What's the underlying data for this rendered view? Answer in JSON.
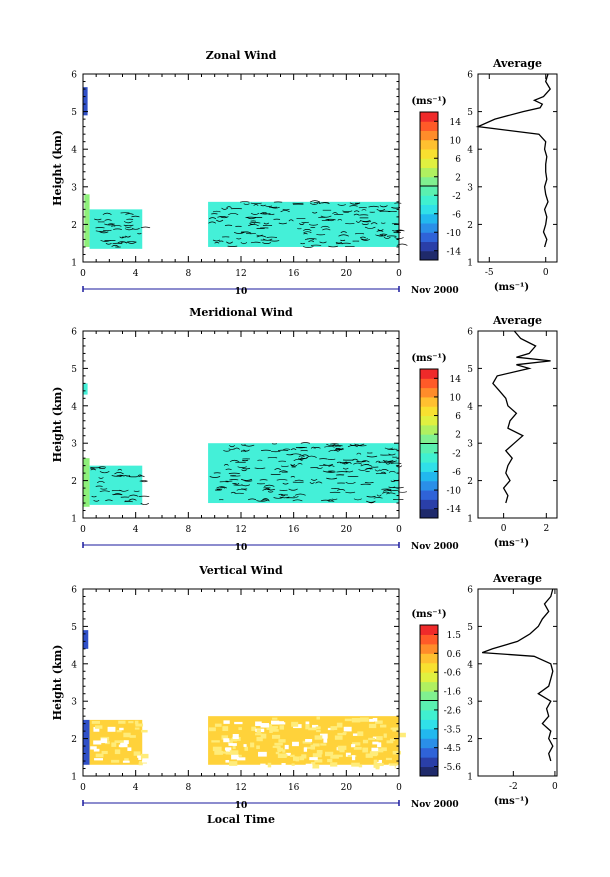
{
  "chart_data": [
    {
      "type": "heatmap",
      "title": "Zonal Wind",
      "ylabel": "Height (km)",
      "xlabel": "",
      "colorbar_label": "(ms⁻¹)",
      "colorbar_ticks": [
        "14",
        "10",
        "6",
        "2",
        "-2",
        "-6",
        "-10",
        "-14"
      ],
      "x_ticks": [
        "0",
        "4",
        "8",
        "12",
        "16",
        "20",
        "0"
      ],
      "y_ticks": [
        "1",
        "2",
        "3",
        "4",
        "5",
        "6"
      ],
      "xlim": [
        0,
        24
      ],
      "ylim": [
        1,
        6
      ],
      "date_label": "10",
      "month_label": "Nov 2000",
      "tone": "cyan",
      "regions": [
        {
          "x0": 0.1,
          "x1": 0.5,
          "y0": 1.4,
          "y1": 2.8,
          "tone": "green"
        },
        {
          "x0": 0.5,
          "x1": 4.5,
          "y0": 1.35,
          "y1": 2.4
        },
        {
          "x0": 9.5,
          "x1": 24,
          "y0": 1.4,
          "y1": 2.6
        },
        {
          "x0": 0.0,
          "x1": 0.35,
          "y0": 4.9,
          "y1": 5.65,
          "tone": "blue"
        }
      ],
      "profile": {
        "title": "Average",
        "xlabel": "(ms⁻¹)",
        "x_ticks": [
          "-5",
          "0"
        ],
        "xlim": [
          -6,
          1
        ],
        "y": [
          1.4,
          1.6,
          1.8,
          2.0,
          2.2,
          2.4,
          2.6,
          2.8,
          3.0,
          3.2,
          3.4,
          3.6,
          3.8,
          4.0,
          4.2,
          4.4,
          4.6,
          4.8,
          5.0,
          5.1,
          5.2,
          5.3,
          5.4,
          5.6,
          5.8,
          6.0
        ],
        "x": [
          -0.1,
          0.1,
          -0.2,
          0.0,
          0.1,
          -0.1,
          0.2,
          0.0,
          -0.1,
          0.1,
          0.0,
          0.0,
          0.1,
          -0.1,
          0.0,
          -0.6,
          -6.0,
          -4.5,
          -2.0,
          -0.5,
          -0.3,
          -1.0,
          -0.2,
          0.4,
          0.0,
          0.2
        ]
      }
    },
    {
      "type": "heatmap",
      "title": "Meridional Wind",
      "ylabel": "Height (km)",
      "xlabel": "",
      "colorbar_label": "(ms⁻¹)",
      "colorbar_ticks": [
        "14",
        "10",
        "6",
        "2",
        "-2",
        "-6",
        "-10",
        "-14"
      ],
      "x_ticks": [
        "0",
        "4",
        "8",
        "12",
        "16",
        "20",
        "0"
      ],
      "y_ticks": [
        "1",
        "2",
        "3",
        "4",
        "5",
        "6"
      ],
      "xlim": [
        0,
        24
      ],
      "ylim": [
        1,
        6
      ],
      "date_label": "10",
      "month_label": "Nov 2000",
      "tone": "cyan",
      "regions": [
        {
          "x0": 0.0,
          "x1": 0.5,
          "y0": 1.3,
          "y1": 2.6,
          "tone": "green"
        },
        {
          "x0": 0.5,
          "x1": 4.5,
          "y0": 1.35,
          "y1": 2.4
        },
        {
          "x0": 9.5,
          "x1": 24,
          "y0": 1.4,
          "y1": 3.0
        },
        {
          "x0": 0.0,
          "x1": 0.35,
          "y0": 4.3,
          "y1": 4.6
        }
      ],
      "profile": {
        "title": "Average",
        "xlabel": "(ms⁻¹)",
        "x_ticks": [
          "0",
          "2"
        ],
        "xlim": [
          -1.2,
          2.5
        ],
        "y": [
          1.4,
          1.6,
          1.8,
          2.0,
          2.2,
          2.4,
          2.6,
          2.8,
          3.0,
          3.2,
          3.4,
          3.6,
          3.8,
          4.0,
          4.2,
          4.4,
          4.6,
          4.8,
          5.0,
          5.1,
          5.2,
          5.3,
          5.4,
          5.6,
          5.8,
          6.0
        ],
        "x": [
          0.1,
          0.2,
          0.0,
          0.3,
          0.1,
          0.2,
          0.4,
          0.1,
          0.5,
          0.9,
          0.2,
          0.3,
          0.6,
          0.2,
          0.1,
          -0.2,
          -0.5,
          -0.3,
          1.2,
          0.6,
          2.2,
          0.6,
          1.2,
          1.5,
          0.8,
          0.5
        ]
      }
    },
    {
      "type": "heatmap",
      "title": "Vertical Wind",
      "ylabel": "Height (km)",
      "xlabel": "Local Time",
      "colorbar_label": "(ms⁻¹)",
      "colorbar_ticks": [
        "1.5",
        "0.6",
        "-0.6",
        "-1.6",
        "-2.6",
        "-3.5",
        "-4.5",
        "-5.6"
      ],
      "x_ticks": [
        "0",
        "4",
        "8",
        "12",
        "16",
        "20",
        "0"
      ],
      "y_ticks": [
        "1",
        "2",
        "3",
        "4",
        "5",
        "6"
      ],
      "xlim": [
        0,
        24
      ],
      "ylim": [
        1,
        6
      ],
      "date_label": "10",
      "month_label": "Nov 2000",
      "tone": "yellow",
      "regions": [
        {
          "x0": 0.0,
          "x1": 0.5,
          "y0": 1.3,
          "y1": 2.5,
          "tone": "blue"
        },
        {
          "x0": 0.5,
          "x1": 4.5,
          "y0": 1.3,
          "y1": 2.5
        },
        {
          "x0": 9.5,
          "x1": 24,
          "y0": 1.3,
          "y1": 2.6
        },
        {
          "x0": 0.0,
          "x1": 0.4,
          "y0": 4.4,
          "y1": 4.9,
          "tone": "blue"
        }
      ],
      "profile": {
        "title": "Average",
        "xlabel": "(ms⁻¹)",
        "x_ticks": [
          "-2",
          "0"
        ],
        "xlim": [
          -3.7,
          0.1
        ],
        "y": [
          1.4,
          1.6,
          1.8,
          2.0,
          2.2,
          2.4,
          2.6,
          2.8,
          3.0,
          3.2,
          3.4,
          3.6,
          3.8,
          4.0,
          4.2,
          4.3,
          4.4,
          4.6,
          4.8,
          5.0,
          5.2,
          5.4,
          5.6,
          5.8,
          6.0
        ],
        "x": [
          -0.2,
          -0.3,
          -0.1,
          -0.3,
          -0.2,
          -0.6,
          -0.3,
          -0.4,
          -0.2,
          -0.8,
          -0.3,
          -0.2,
          -0.1,
          -0.2,
          -1.0,
          -3.5,
          -3.0,
          -1.8,
          -1.2,
          -0.8,
          -0.6,
          -0.3,
          -0.5,
          -0.2,
          -0.1
        ]
      }
    }
  ],
  "colors": {
    "scale": [
      "#1f2a6b",
      "#2a3fa8",
      "#2f63d8",
      "#2a8fe8",
      "#22b8ee",
      "#30e0e8",
      "#40f0d0",
      "#5af0b0",
      "#80f090",
      "#b0f060",
      "#e0f040",
      "#f8e030",
      "#ffc030",
      "#ff8c2a",
      "#ff5a28",
      "#ef2a2a"
    ],
    "fill_cyan": "#44f0d8",
    "fill_green": "#8ef07a",
    "fill_blue": "#3050c8",
    "fill_yellow": "#ffd23a",
    "fill_yellow_light": "#ffec7a",
    "contour": "#000000",
    "timeline": "#1a1a9e"
  }
}
